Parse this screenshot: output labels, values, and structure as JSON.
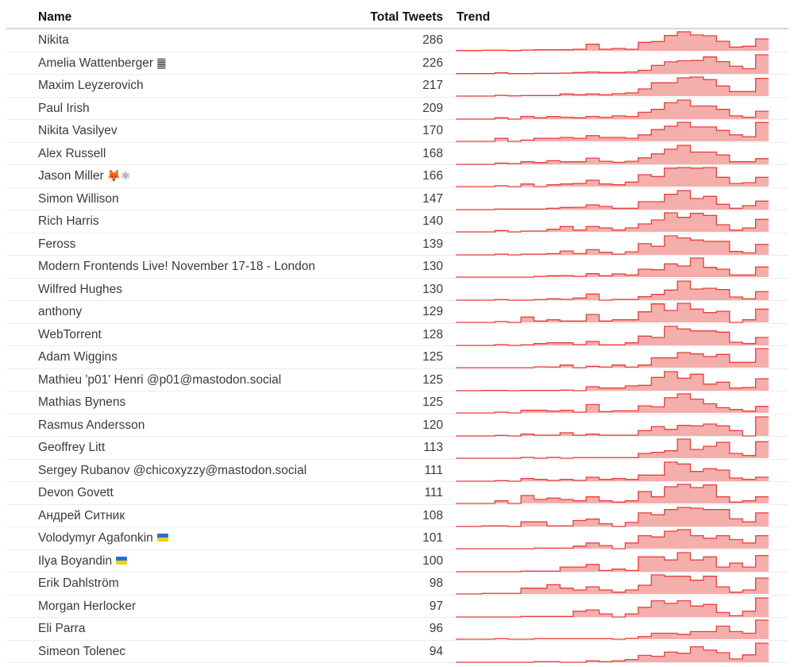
{
  "columns": {
    "name": "Name",
    "total": "Total Tweets",
    "trend": "Trend"
  },
  "colors": {
    "trend_line": "#e8403a",
    "trend_fill": "#f4aeac"
  },
  "rows": [
    {
      "name": "Nikita",
      "total": "286",
      "trend": [
        1,
        1,
        2,
        2,
        1,
        3,
        4,
        4,
        4,
        6,
        25,
        6,
        9,
        6,
        32,
        35,
        58,
        72,
        60,
        57,
        36,
        14,
        17,
        45
      ]
    },
    {
      "name": "Amelia Wattenberger",
      "badge": "䷀",
      "total": "226",
      "trend": [
        1,
        1,
        1,
        4,
        1,
        1,
        2,
        2,
        3,
        5,
        7,
        5,
        5,
        7,
        13,
        31,
        44,
        48,
        49,
        62,
        45,
        28,
        19,
        70
      ]
    },
    {
      "name": "Maxim Leyzerovich",
      "total": "217",
      "trend": [
        0,
        0,
        0,
        3,
        1,
        2,
        2,
        2,
        8,
        5,
        8,
        5,
        9,
        12,
        27,
        50,
        50,
        69,
        72,
        62,
        38,
        17,
        17,
        67
      ]
    },
    {
      "name": "Paul Irish",
      "total": "209",
      "trend": [
        0,
        0,
        0,
        5,
        0,
        10,
        5,
        10,
        7,
        5,
        10,
        7,
        12,
        10,
        25,
        36,
        60,
        70,
        48,
        48,
        36,
        12,
        7,
        29
      ]
    },
    {
      "name": "Nikita Vasilyev",
      "total": "170",
      "trend": [
        0,
        0,
        0,
        12,
        0,
        5,
        12,
        12,
        15,
        12,
        22,
        15,
        15,
        12,
        25,
        45,
        58,
        73,
        55,
        55,
        42,
        25,
        18,
        72
      ]
    },
    {
      "name": "Alex Russell",
      "total": "168",
      "trend": [
        0,
        0,
        0,
        5,
        3,
        10,
        7,
        14,
        10,
        10,
        24,
        12,
        8,
        12,
        25,
        40,
        58,
        73,
        47,
        47,
        36,
        10,
        10,
        22
      ]
    },
    {
      "name": "Jason Miller",
      "badge": "🦊⚛",
      "total": "166",
      "trend": [
        0,
        0,
        0,
        3,
        0,
        10,
        0,
        7,
        10,
        12,
        24,
        10,
        7,
        17,
        45,
        38,
        70,
        72,
        70,
        72,
        35,
        12,
        15,
        35
      ]
    },
    {
      "name": "Simon Willison",
      "total": "147",
      "trend": [
        0,
        0,
        0,
        2,
        2,
        2,
        2,
        5,
        8,
        9,
        18,
        12,
        5,
        5,
        30,
        30,
        58,
        72,
        42,
        50,
        20,
        5,
        15,
        32
      ]
    },
    {
      "name": "Rich Harris",
      "total": "140",
      "trend": [
        0,
        0,
        0,
        5,
        0,
        3,
        3,
        10,
        20,
        7,
        20,
        15,
        7,
        15,
        30,
        45,
        72,
        55,
        70,
        62,
        27,
        7,
        15,
        47
      ]
    },
    {
      "name": "Feross",
      "total": "139",
      "trend": [
        0,
        0,
        0,
        3,
        0,
        3,
        3,
        5,
        15,
        5,
        20,
        10,
        3,
        12,
        43,
        33,
        73,
        65,
        57,
        52,
        52,
        13,
        8,
        40
      ]
    },
    {
      "name": "Modern Frontends Live! November 17-18 - London",
      "total": "130",
      "trend": [
        0,
        0,
        0,
        0,
        0,
        0,
        3,
        5,
        6,
        3,
        13,
        5,
        12,
        8,
        30,
        28,
        50,
        42,
        72,
        37,
        30,
        8,
        8,
        38
      ]
    },
    {
      "name": "Wilfred Hughes",
      "total": "130",
      "trend": [
        0,
        0,
        0,
        2,
        0,
        0,
        2,
        5,
        3,
        8,
        23,
        0,
        3,
        3,
        13,
        22,
        38,
        72,
        42,
        45,
        40,
        12,
        5,
        32
      ]
    },
    {
      "name": "anthony",
      "total": "129",
      "trend": [
        0,
        0,
        0,
        3,
        0,
        20,
        5,
        10,
        5,
        5,
        30,
        5,
        10,
        10,
        40,
        70,
        45,
        72,
        50,
        37,
        42,
        0,
        10,
        50
      ]
    },
    {
      "name": "WebTorrent",
      "total": "128",
      "trend": [
        0,
        0,
        0,
        3,
        0,
        2,
        7,
        10,
        10,
        3,
        15,
        2,
        2,
        10,
        35,
        30,
        72,
        62,
        55,
        55,
        50,
        12,
        7,
        30
      ]
    },
    {
      "name": "Adam Wiggins",
      "total": "125",
      "trend": [
        0,
        0,
        0,
        0,
        0,
        0,
        3,
        2,
        10,
        0,
        5,
        2,
        10,
        2,
        10,
        37,
        37,
        57,
        52,
        42,
        50,
        20,
        20,
        72
      ]
    },
    {
      "name": "Mathieu 'p01' Henri @p01@mastodon.social",
      "total": "125",
      "trend": [
        0,
        0,
        1,
        1,
        0,
        1,
        1,
        1,
        2,
        0,
        15,
        10,
        10,
        18,
        20,
        50,
        72,
        47,
        62,
        25,
        32,
        10,
        12,
        45
      ]
    },
    {
      "name": "Mathias Bynens",
      "total": "125",
      "trend": [
        0,
        0,
        0,
        3,
        0,
        10,
        10,
        7,
        10,
        3,
        32,
        5,
        8,
        8,
        27,
        23,
        58,
        73,
        53,
        35,
        20,
        13,
        7,
        25
      ]
    },
    {
      "name": "Rasmus Andersson",
      "total": "120",
      "trend": [
        0,
        0,
        0,
        2,
        0,
        7,
        3,
        3,
        12,
        3,
        7,
        3,
        3,
        3,
        20,
        35,
        25,
        40,
        38,
        45,
        38,
        20,
        0,
        72
      ]
    },
    {
      "name": "Geoffrey Litt",
      "total": "113",
      "trend": [
        0,
        0,
        0,
        0,
        0,
        3,
        0,
        3,
        0,
        2,
        2,
        2,
        2,
        2,
        18,
        22,
        28,
        72,
        33,
        45,
        60,
        18,
        10,
        62
      ]
    },
    {
      "name": "Sergey Rubanov @chicoxyzzy@mastodon.social",
      "total": "111",
      "trend": [
        0,
        0,
        0,
        2,
        0,
        10,
        7,
        3,
        7,
        3,
        15,
        7,
        10,
        7,
        23,
        23,
        72,
        65,
        37,
        47,
        42,
        12,
        7,
        15
      ]
    },
    {
      "name": "Devon Govett",
      "total": "111",
      "trend": [
        0,
        0,
        0,
        10,
        0,
        30,
        15,
        20,
        15,
        10,
        25,
        10,
        5,
        10,
        45,
        25,
        63,
        72,
        60,
        70,
        25,
        5,
        10,
        25
      ]
    },
    {
      "name": "Андрей Ситник",
      "total": "108",
      "trend": [
        0,
        0,
        2,
        2,
        0,
        17,
        17,
        2,
        2,
        22,
        27,
        10,
        0,
        15,
        50,
        43,
        62,
        70,
        67,
        62,
        62,
        28,
        17,
        50
      ]
    },
    {
      "name": "Volodymyr Agafonkin",
      "flag": "🇺🇦",
      "total": "101",
      "trend": [
        0,
        0,
        0,
        0,
        0,
        0,
        2,
        2,
        2,
        10,
        22,
        12,
        0,
        22,
        50,
        45,
        67,
        73,
        50,
        40,
        50,
        35,
        22,
        50
      ]
    },
    {
      "name": "Ilya Boyandin",
      "flag": "🇺🇦",
      "total": "100",
      "trend": [
        0,
        0,
        0,
        0,
        0,
        2,
        2,
        2,
        18,
        18,
        28,
        5,
        10,
        5,
        57,
        57,
        45,
        73,
        45,
        57,
        18,
        33,
        18,
        62
      ]
    },
    {
      "name": "Erik Dahlström",
      "total": "98",
      "trend": [
        0,
        0,
        2,
        2,
        2,
        22,
        22,
        35,
        22,
        15,
        27,
        15,
        7,
        15,
        33,
        72,
        67,
        67,
        52,
        67,
        27,
        7,
        15,
        60
      ]
    },
    {
      "name": "Morgan Herlocker",
      "total": "97",
      "trend": [
        0,
        0,
        0,
        0,
        0,
        2,
        2,
        2,
        2,
        22,
        27,
        12,
        0,
        12,
        37,
        62,
        52,
        62,
        42,
        48,
        17,
        5,
        22,
        73
      ]
    },
    {
      "name": "Eli Parra",
      "total": "96",
      "trend": [
        0,
        0,
        0,
        2,
        0,
        0,
        2,
        2,
        2,
        2,
        2,
        2,
        0,
        3,
        10,
        22,
        22,
        18,
        28,
        28,
        48,
        28,
        22,
        70
      ]
    },
    {
      "name": "Simeon Tolenec",
      "total": "94",
      "trend": [
        0,
        0,
        0,
        0,
        0,
        0,
        2,
        2,
        0,
        0,
        5,
        2,
        5,
        10,
        25,
        22,
        37,
        33,
        57,
        45,
        35,
        12,
        27,
        70
      ]
    }
  ]
}
